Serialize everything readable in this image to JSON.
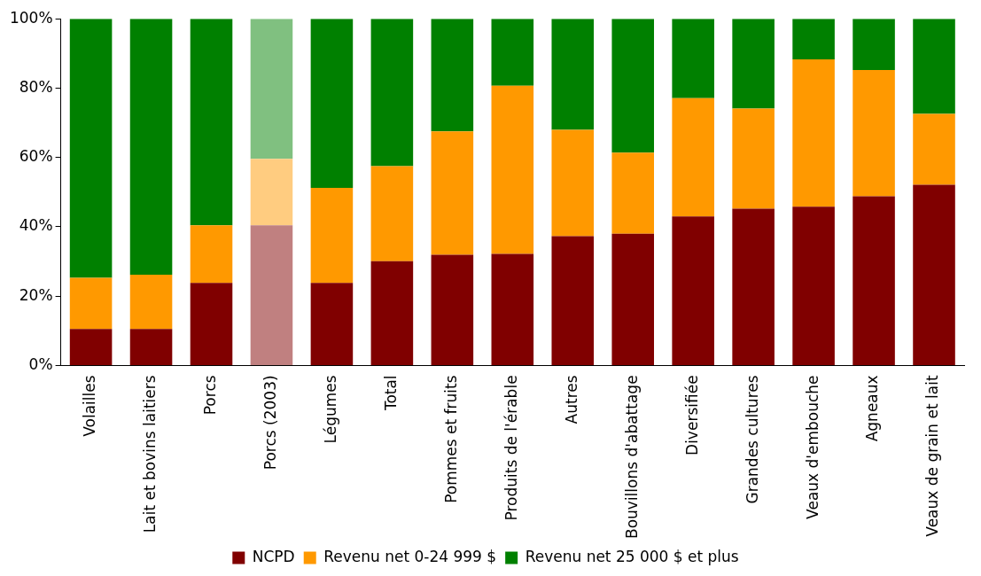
{
  "chart_data": {
    "type": "bar",
    "stacked": true,
    "legend": "bottom",
    "grid": false,
    "categories": [
      "Volailles",
      "Lait et bovins laitiers",
      "Porcs",
      "Porcs (2003)",
      "Légumes",
      "Total",
      "Pommes et fruits",
      "Produits de l'érable",
      "Autres",
      "Bouvillons d'abattage",
      "Diversifiée",
      "Grandes cultures",
      "Veaux d'embouche",
      "Agneaux",
      "Veaux de grain et lait"
    ],
    "ylim": [
      0,
      100
    ],
    "yticks": [
      {
        "value": 0,
        "label": "0%"
      },
      {
        "value": 20,
        "label": "20%"
      },
      {
        "value": 40,
        "label": "40%"
      },
      {
        "value": 60,
        "label": "60%"
      },
      {
        "value": 80,
        "label": "80%"
      },
      {
        "value": 100,
        "label": "100%"
      }
    ],
    "series": [
      {
        "name": "NCPD",
        "color": "#800000",
        "colors": [
          "#800000",
          "#800000",
          "#800000",
          "#c08080",
          "#800000",
          "#800000",
          "#800000",
          "#800000",
          "#800000",
          "#800000",
          "#800000",
          "#800000",
          "#800000",
          "#800000",
          "#800000"
        ],
        "values": [
          10.5,
          10.5,
          23.8,
          40.4,
          23.8,
          30.1,
          31.9,
          32.2,
          37.3,
          38,
          43,
          45.2,
          45.8,
          48.8,
          52.1
        ]
      },
      {
        "name": "Revenu net 0-24 999 $",
        "color": "#ff9900",
        "colors": [
          "#ff9900",
          "#ff9900",
          "#ff9900",
          "#ffcc80",
          "#ff9900",
          "#ff9900",
          "#ff9900",
          "#ff9900",
          "#ff9900",
          "#ff9900",
          "#ff9900",
          "#ff9900",
          "#ff9900",
          "#ff9900",
          "#ff9900"
        ],
        "values": [
          14.8,
          15.7,
          16.6,
          19.2,
          27.4,
          27.4,
          35.6,
          48.5,
          30.7,
          23.4,
          34.1,
          28.9,
          42.5,
          36.4,
          20.5
        ]
      },
      {
        "name": "Revenu net 25 000 $ et plus",
        "color": "#008000",
        "colors": [
          "#008000",
          "#008000",
          "#008000",
          "#80c080",
          "#008000",
          "#008000",
          "#008000",
          "#008000",
          "#008000",
          "#008000",
          "#008000",
          "#008000",
          "#008000",
          "#008000",
          "#008000"
        ],
        "values": [
          74.7,
          73.8,
          59.6,
          40.4,
          48.8,
          42.5,
          32.5,
          19.3,
          32,
          38.6,
          22.9,
          25.9,
          11.7,
          14.8,
          27.4
        ]
      }
    ]
  }
}
